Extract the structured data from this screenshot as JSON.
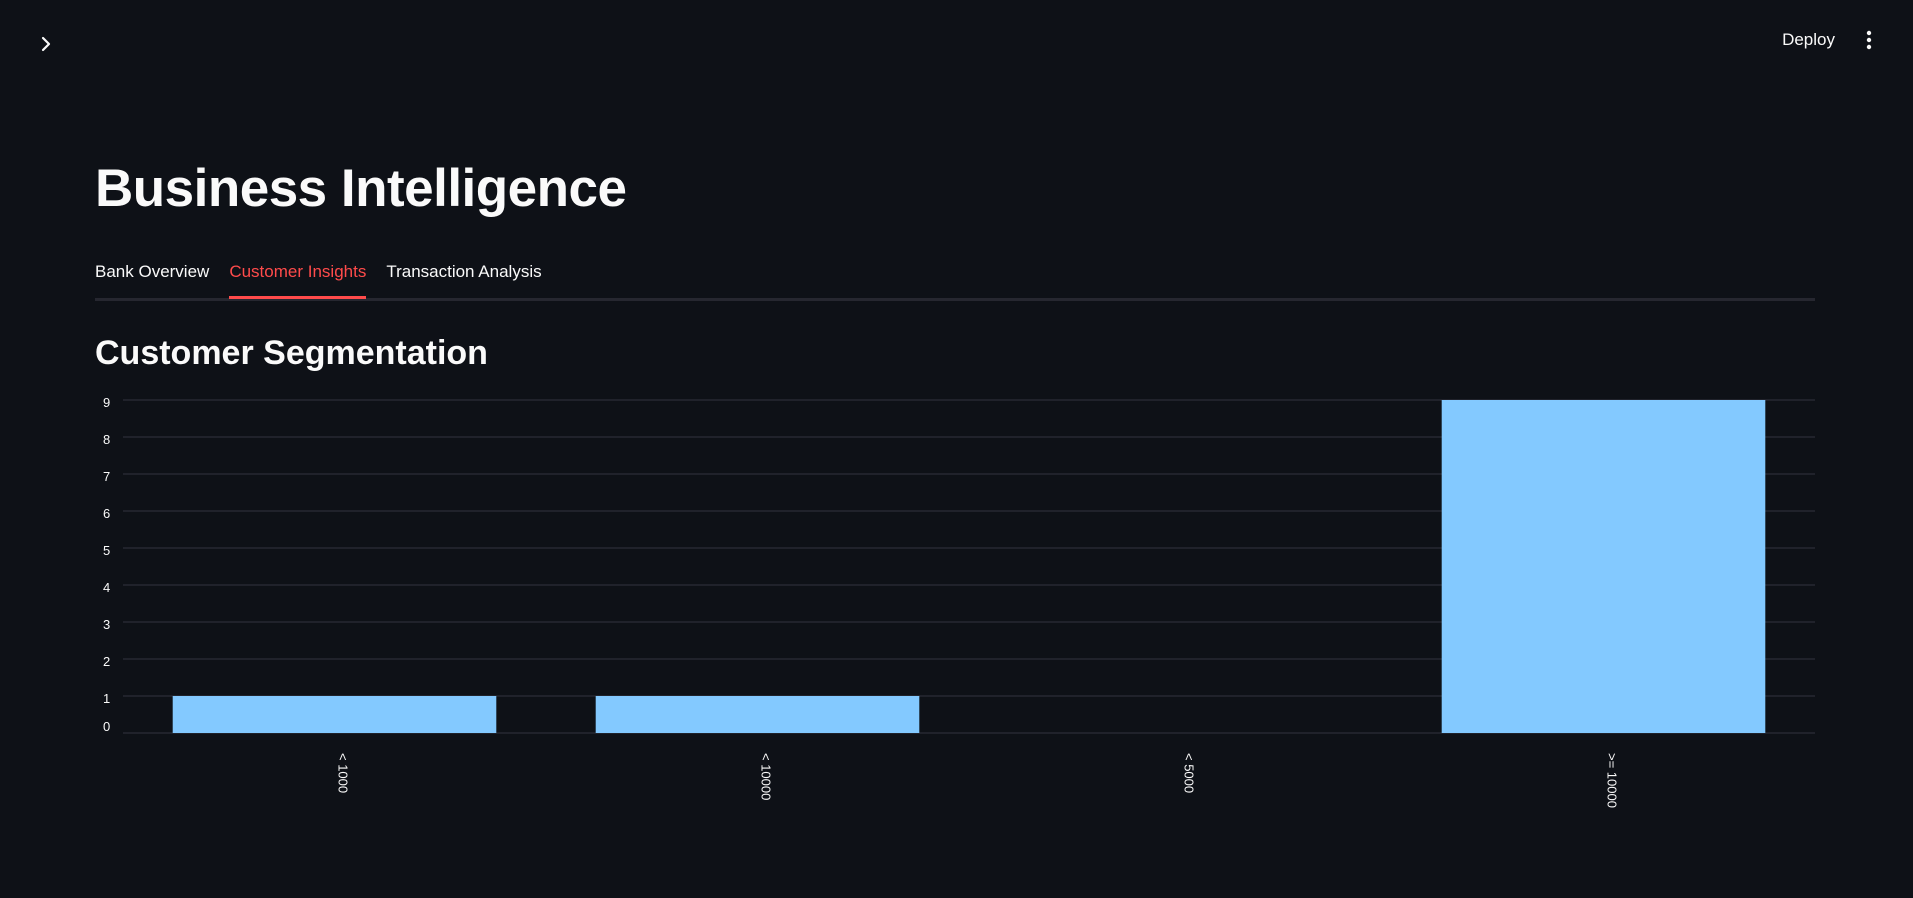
{
  "header": {
    "deploy_label": "Deploy",
    "sidebar_toggle_icon": "chevron-right-icon",
    "menu_icon": "vertical-ellipsis-icon"
  },
  "page": {
    "title": "Business Intelligence"
  },
  "tabs": [
    {
      "label": "Bank Overview",
      "active": false
    },
    {
      "label": "Customer Insights",
      "active": true
    },
    {
      "label": "Transaction Analysis",
      "active": false
    }
  ],
  "section": {
    "title": "Customer Segmentation"
  },
  "colors": {
    "background": "#0e1117",
    "accent": "#ff4b4b",
    "bar": "#83c9ff",
    "grid": "#31333f"
  },
  "chart_data": {
    "type": "bar",
    "categories": [
      "< 1000",
      "< 10000",
      "< 5000",
      ">= 10000"
    ],
    "values": [
      1,
      1,
      0,
      9
    ],
    "yticks": [
      0,
      1,
      2,
      3,
      4,
      5,
      6,
      7,
      8,
      9
    ],
    "ylim": [
      0,
      9
    ],
    "grid": true,
    "xlabel_rotation": "vertical"
  }
}
